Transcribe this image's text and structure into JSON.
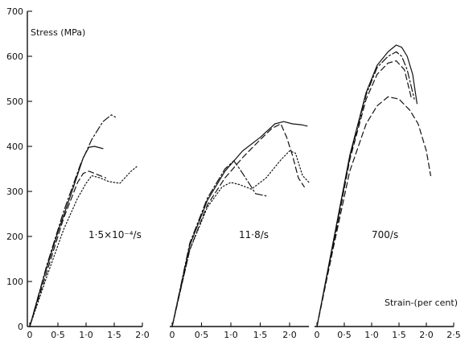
{
  "chart_data": {
    "type": "line",
    "title": "",
    "ylabel": "Stress (MPa)",
    "xlabel": "Strain-(per cent)",
    "y_ticks": [
      "0",
      "100",
      "200",
      "300",
      "400",
      "500",
      "600",
      "700"
    ],
    "ylim": [
      0,
      700
    ],
    "grid": false,
    "legend": "none",
    "panels": [
      {
        "label": "1·5×10⁻⁴/s",
        "x_ticks": [
          "0",
          "0·5",
          "1·0",
          "1·5",
          "2·0"
        ],
        "xlim": [
          0,
          2.0
        ],
        "series": [
          {
            "style": "solid",
            "x": [
              0,
              0.25,
              0.5,
              0.75,
              0.95,
              1.05,
              1.15,
              1.3
            ],
            "y": [
              0,
              110,
              210,
              300,
              375,
              398,
              400,
              395
            ]
          },
          {
            "style": "dashdot",
            "x": [
              0,
              0.3,
              0.6,
              0.9,
              1.1,
              1.3,
              1.45,
              1.52
            ],
            "y": [
              0,
              135,
              255,
              360,
              415,
              455,
              470,
              465
            ]
          },
          {
            "style": "dashed",
            "x": [
              0,
              0.3,
              0.6,
              0.85,
              0.95,
              1.05,
              1.15,
              1.25,
              1.35
            ],
            "y": [
              0,
              120,
              240,
              320,
              340,
              345,
              340,
              335,
              330
            ]
          },
          {
            "style": "dotted",
            "x": [
              0,
              0.3,
              0.6,
              0.85,
              1.0,
              1.1,
              1.25,
              1.4,
              1.6,
              1.8,
              1.9
            ],
            "y": [
              0,
              110,
              215,
              285,
              318,
              335,
              330,
              322,
              318,
              345,
              355
            ]
          }
        ]
      },
      {
        "label": "11·8/s",
        "x_ticks": [
          "0",
          "0·5",
          "1·0",
          "1·5",
          "2·0"
        ],
        "xlim": [
          0,
          2.33
        ],
        "series": [
          {
            "style": "solid",
            "x": [
              0,
              0.3,
              0.6,
              0.9,
              1.2,
              1.5,
              1.75,
              1.9,
              2.05,
              2.2,
              2.3
            ],
            "y": [
              0,
              180,
              280,
              345,
              390,
              420,
              450,
              455,
              450,
              448,
              445
            ]
          },
          {
            "style": "dashed",
            "x": [
              0,
              0.3,
              0.6,
              0.9,
              1.2,
              1.5,
              1.7,
              1.85,
              1.95,
              2.05,
              2.15,
              2.25
            ],
            "y": [
              0,
              170,
              270,
              330,
              375,
              415,
              440,
              450,
              420,
              380,
              330,
              310
            ]
          },
          {
            "style": "dashdot",
            "x": [
              0,
              0.3,
              0.6,
              0.9,
              1.05,
              1.15,
              1.3,
              1.42,
              1.6
            ],
            "y": [
              0,
              185,
              285,
              350,
              368,
              350,
              320,
              295,
              290
            ]
          },
          {
            "style": "dotted",
            "x": [
              0,
              0.3,
              0.6,
              0.85,
              1.0,
              1.15,
              1.35,
              1.6,
              1.85,
              2.0,
              2.1,
              2.22,
              2.33
            ],
            "y": [
              0,
              170,
              265,
              310,
              320,
              315,
              305,
              330,
              370,
              390,
              385,
              335,
              320
            ]
          }
        ]
      },
      {
        "label": "700/s",
        "x_ticks": [
          "0",
          "0·5",
          "1·0",
          "1·5",
          "2·0",
          "2·5"
        ],
        "xlim": [
          0,
          2.5
        ],
        "series": [
          {
            "style": "solid",
            "x": [
              0,
              0.3,
              0.6,
              0.9,
              1.1,
              1.3,
              1.45,
              1.55,
              1.65,
              1.75,
              1.83
            ],
            "y": [
              0,
              190,
              380,
              520,
              580,
              610,
              625,
              620,
              600,
              560,
              495
            ]
          },
          {
            "style": "dashdot",
            "x": [
              0,
              0.3,
              0.6,
              0.9,
              1.1,
              1.3,
              1.45,
              1.55,
              1.65,
              1.78
            ],
            "y": [
              0,
              185,
              375,
              515,
              575,
              600,
              610,
              600,
              570,
              505
            ]
          },
          {
            "style": "dashed",
            "x": [
              0,
              0.3,
              0.6,
              0.9,
              1.1,
              1.3,
              1.45,
              1.6,
              1.72
            ],
            "y": [
              0,
              180,
              370,
              505,
              560,
              585,
              590,
              570,
              510
            ]
          },
          {
            "style": "dashed",
            "x": [
              0,
              0.3,
              0.6,
              0.9,
              1.1,
              1.3,
              1.5,
              1.7,
              1.85,
              2.0,
              2.08
            ],
            "y": [
              0,
              175,
              345,
              450,
              490,
              510,
              505,
              480,
              450,
              390,
              335
            ]
          }
        ]
      }
    ]
  }
}
